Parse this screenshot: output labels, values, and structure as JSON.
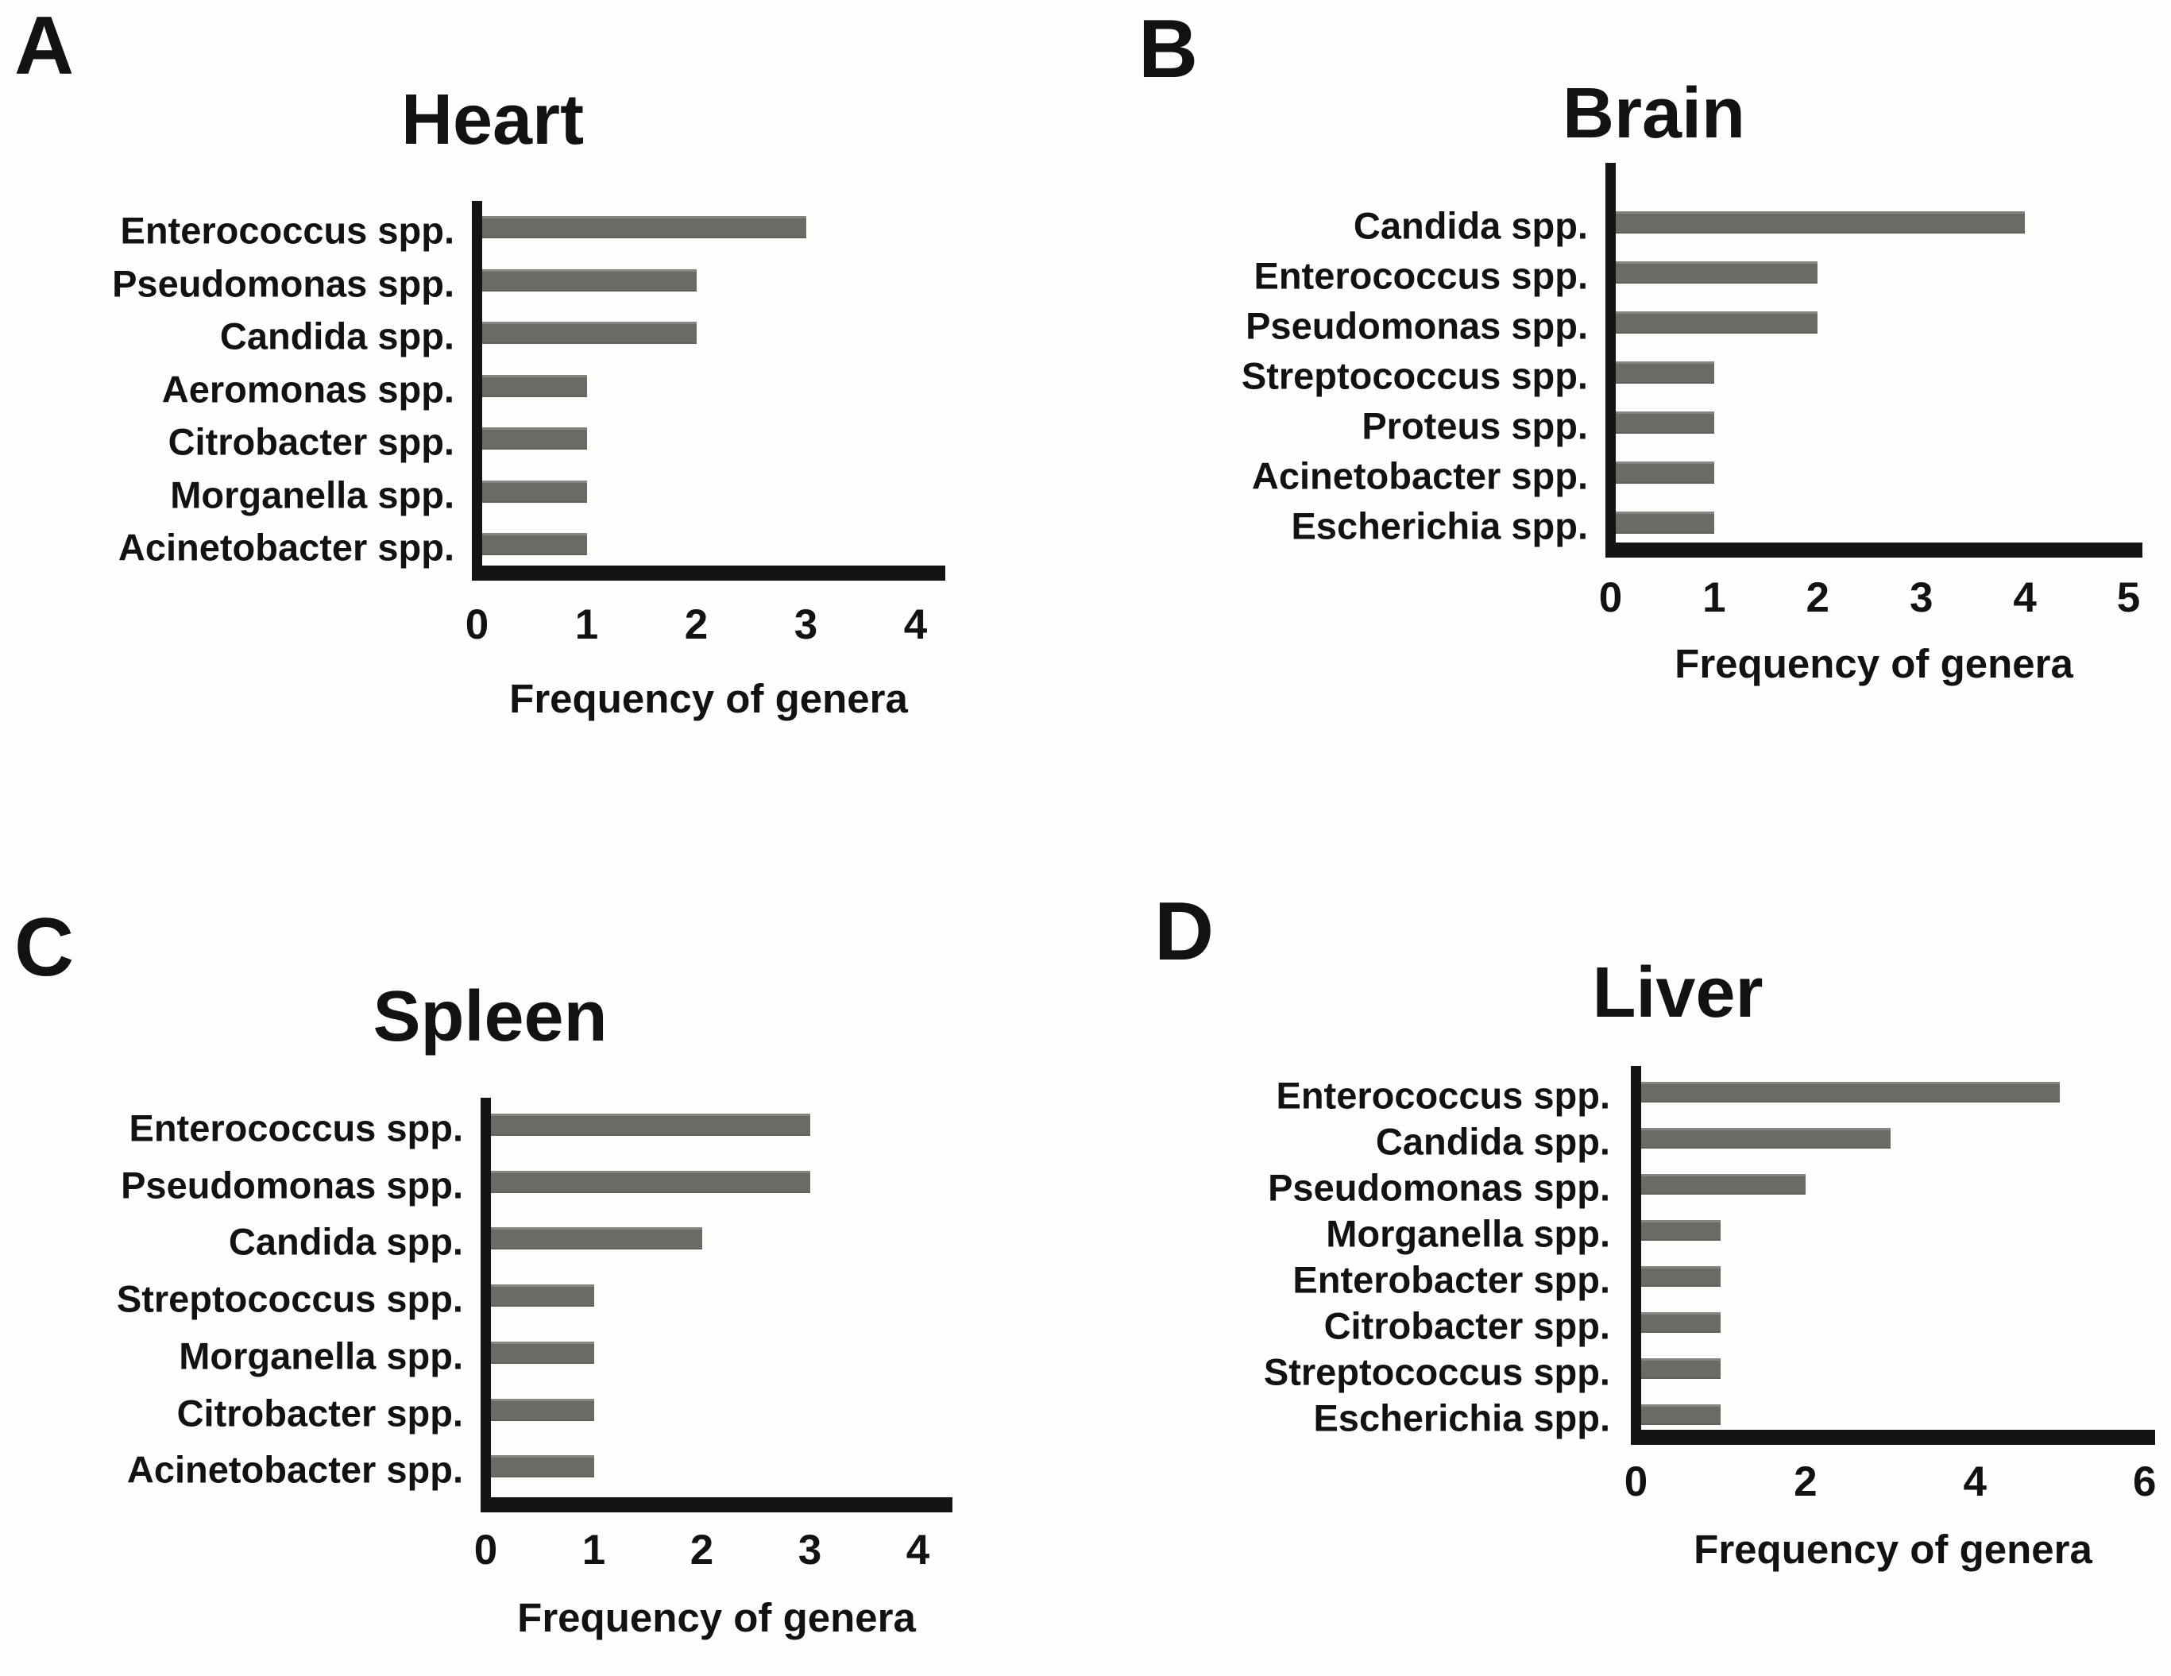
{
  "figure": {
    "background_color": "#fdfdfb",
    "bar_color": "#6b6b66",
    "axis_color": "#141414",
    "text_color": "#121212",
    "x_axis_label": "Frequency of genera"
  },
  "chart_data": [
    {
      "panel_letter": "A",
      "type": "bar",
      "orientation": "horizontal",
      "title": "Heart",
      "xlabel": "Frequency of genera",
      "categories": [
        "Enterococcus spp.",
        "Pseudomonas spp.",
        "Candida spp.",
        "Aeromonas spp.",
        "Citrobacter spp.",
        "Morganella spp.",
        "Acinetobacter spp."
      ],
      "values": [
        3,
        2,
        2,
        1,
        1,
        1,
        1
      ],
      "xlim": [
        0,
        4.3
      ],
      "xticks": [
        0,
        1,
        2,
        3,
        4
      ],
      "grid": false,
      "legend": "none"
    },
    {
      "panel_letter": "B",
      "type": "bar",
      "orientation": "horizontal",
      "title": "Brain",
      "xlabel": "Frequency of genera",
      "categories": [
        "Candida spp.",
        "Enterococcus spp.",
        "Pseudomonas spp.",
        "Streptococcus spp.",
        "Proteus spp.",
        "Acinetobacter spp.",
        "Escherichia spp."
      ],
      "values": [
        4,
        2,
        2,
        1,
        1,
        1,
        1
      ],
      "xlim": [
        0,
        5.2
      ],
      "xticks": [
        0,
        1,
        2,
        3,
        4,
        5
      ],
      "grid": false,
      "legend": "none"
    },
    {
      "panel_letter": "C",
      "type": "bar",
      "orientation": "horizontal",
      "title": "Spleen",
      "xlabel": "Frequency of genera",
      "categories": [
        "Enterococcus spp.",
        "Pseudomonas spp.",
        "Candida spp.",
        "Streptococcus spp.",
        "Morganella spp.",
        "Citrobacter spp.",
        "Acinetobacter spp."
      ],
      "values": [
        3,
        3,
        2,
        1,
        1,
        1,
        1
      ],
      "xlim": [
        0,
        4.35
      ],
      "xticks": [
        0,
        1,
        2,
        3,
        4
      ],
      "grid": false,
      "legend": "none"
    },
    {
      "panel_letter": "D",
      "type": "bar",
      "orientation": "horizontal",
      "title": "Liver",
      "xlabel": "Frequency of genera",
      "categories": [
        "Enterococcus spp.",
        "Candida spp.",
        "Pseudomonas spp.",
        "Morganella spp.",
        "Enterobacter spp.",
        "Citrobacter spp.",
        "Streptococcus spp.",
        "Escherichia spp."
      ],
      "values": [
        5,
        3,
        2,
        1,
        1,
        1,
        1,
        1
      ],
      "xlim": [
        0,
        6.15
      ],
      "xticks": [
        0,
        2,
        4,
        6
      ],
      "grid": false,
      "legend": "none"
    }
  ]
}
